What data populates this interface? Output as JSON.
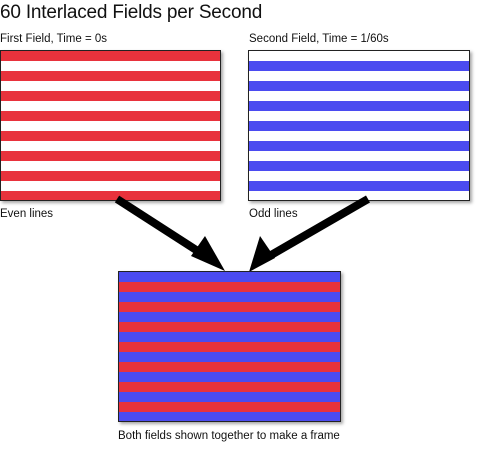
{
  "title": "60 Interlaced Fields per Second",
  "first_field": {
    "heading": "First Field, Time = 0s",
    "caption": "Even lines",
    "stripe_count": 15,
    "first_color": "#e8323c",
    "second_color": "#ffffff"
  },
  "second_field": {
    "heading": "Second Field, Time = 1/60s",
    "caption": "Odd lines",
    "stripe_count": 15,
    "first_color": "#ffffff",
    "second_color": "#4b4bf0"
  },
  "frame": {
    "caption": "Both fields shown together to make a frame",
    "stripe_count": 15,
    "first_color": "#4b4bf0",
    "second_color": "#e8323c"
  },
  "colors": {
    "red": "#e8323c",
    "blue": "#4b4bf0",
    "arrow": "#000000"
  }
}
